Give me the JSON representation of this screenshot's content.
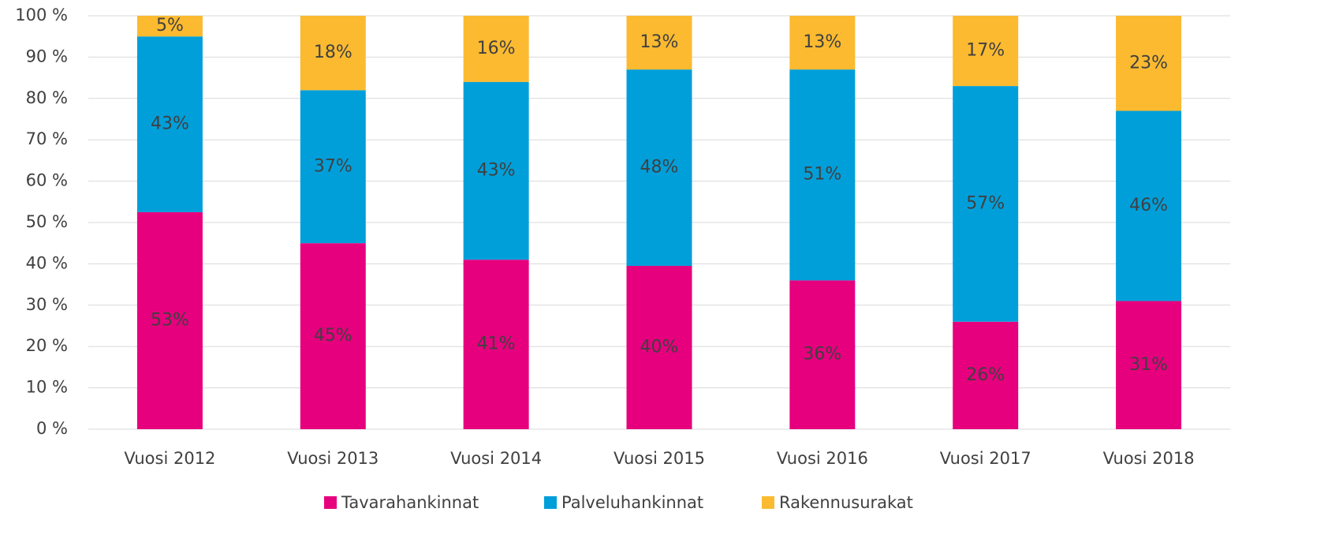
{
  "chart_data": {
    "type": "stacked_bar",
    "categories": [
      "Vuosi 2012",
      "Vuosi 2013",
      "Vuosi 2014",
      "Vuosi 2015",
      "Vuosi 2016",
      "Vuosi 2017",
      "Vuosi 2018"
    ],
    "series": [
      {
        "name": "Tavarahankinnat",
        "color": "#e6007e",
        "values": [
          52.5,
          45,
          41,
          39.5,
          36,
          26,
          31
        ],
        "value_labels": [
          "53%",
          "45%",
          "41%",
          "40%",
          "36%",
          "26%",
          "31%"
        ]
      },
      {
        "name": "Palveluhankinnat",
        "color": "#009fda",
        "values": [
          42.5,
          37,
          43,
          47.5,
          51,
          57,
          46
        ],
        "value_labels": [
          "43%",
          "37%",
          "43%",
          "48%",
          "51%",
          "57%",
          "46%"
        ]
      },
      {
        "name": "Rakennusurakat",
        "color": "#fbba30",
        "values": [
          5,
          18,
          16,
          13,
          13,
          17,
          23
        ],
        "value_labels": [
          "5%",
          "18%",
          "16%",
          "13%",
          "13%",
          "17%",
          "23%"
        ]
      }
    ],
    "ylim": [
      0,
      100
    ],
    "yticks": [
      {
        "value": 0,
        "label": "0 %"
      },
      {
        "value": 10,
        "label": "10 %"
      },
      {
        "value": 20,
        "label": "20 %"
      },
      {
        "value": 30,
        "label": "30 %"
      },
      {
        "value": 40,
        "label": "40 %"
      },
      {
        "value": 50,
        "label": "50 %"
      },
      {
        "value": 60,
        "label": "60 %"
      },
      {
        "value": 70,
        "label": "70 %"
      },
      {
        "value": 80,
        "label": "80 %"
      },
      {
        "value": 90,
        "label": "90 %"
      },
      {
        "value": 100,
        "label": "100 %"
      }
    ],
    "grid": true,
    "legend": "bottom"
  }
}
